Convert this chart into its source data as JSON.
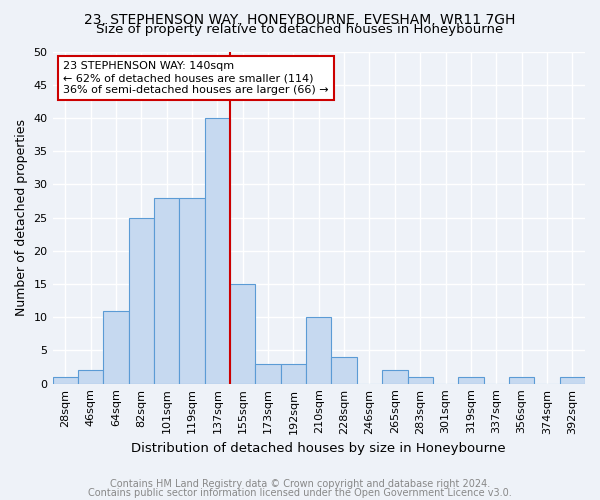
{
  "title1": "23, STEPHENSON WAY, HONEYBOURNE, EVESHAM, WR11 7GH",
  "title2": "Size of property relative to detached houses in Honeybourne",
  "xlabel": "Distribution of detached houses by size in Honeybourne",
  "ylabel": "Number of detached properties",
  "bin_labels": [
    "28sqm",
    "46sqm",
    "64sqm",
    "82sqm",
    "101sqm",
    "119sqm",
    "137sqm",
    "155sqm",
    "173sqm",
    "192sqm",
    "210sqm",
    "228sqm",
    "246sqm",
    "265sqm",
    "283sqm",
    "301sqm",
    "319sqm",
    "337sqm",
    "356sqm",
    "374sqm",
    "392sqm"
  ],
  "values": [
    1,
    2,
    11,
    25,
    28,
    28,
    40,
    15,
    3,
    3,
    10,
    4,
    0,
    2,
    1,
    0,
    1,
    0,
    1,
    0,
    1
  ],
  "bar_color": "#c6d9f0",
  "bar_edge_color": "#5b9bd5",
  "vline_x": 6.5,
  "vline_color": "#cc0000",
  "annotation_line1": "23 STEPHENSON WAY: 140sqm",
  "annotation_line2": "← 62% of detached houses are smaller (114)",
  "annotation_line3": "36% of semi-detached houses are larger (66) →",
  "annotation_box_color": "#ffffff",
  "annotation_box_edge": "#cc0000",
  "ylim": [
    0,
    50
  ],
  "yticks": [
    0,
    5,
    10,
    15,
    20,
    25,
    30,
    35,
    40,
    45,
    50
  ],
  "footer1": "Contains HM Land Registry data © Crown copyright and database right 2024.",
  "footer2": "Contains public sector information licensed under the Open Government Licence v3.0.",
  "bg_color": "#eef2f8",
  "grid_color": "#ffffff",
  "title1_fontsize": 10,
  "title2_fontsize": 9.5,
  "xlabel_fontsize": 9.5,
  "ylabel_fontsize": 9,
  "tick_fontsize": 8,
  "annotation_fontsize": 8,
  "footer_fontsize": 7
}
